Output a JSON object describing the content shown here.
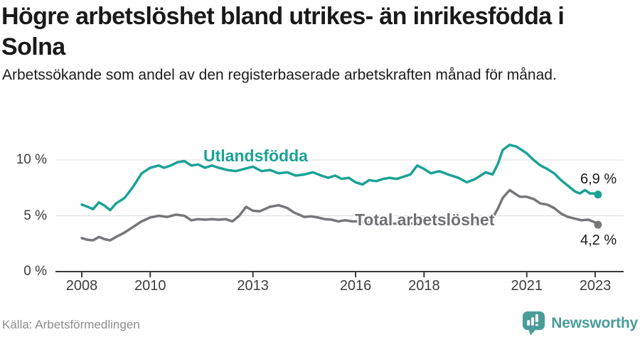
{
  "header": {
    "title": "Högre arbetslöshet bland utrikes- än inrikesfödda i Solna",
    "subtitle": "Arbetssökande som andel av den registerbaserade arbetskraften månad för månad."
  },
  "footer": {
    "source": "Källa: Arbetsförmedlingen",
    "brand_name": "Newsworthy",
    "brand_icon": "newsworthy-speech-bubble-bar-chart-icon",
    "brand_color": "#4a9c99"
  },
  "chart_data": {
    "type": "line",
    "title": "Högre arbetslöshet bland utrikes- än inrikesfödda i Solna",
    "subtitle": "Arbetssökande som andel av den registerbaserade arbetskraften månad för månad.",
    "xlabel": "",
    "ylabel": "",
    "grid": true,
    "legend_position": "inline-labels",
    "x_axis": {
      "unit": "year",
      "range": [
        2007.25,
        2023.85
      ],
      "ticks": [
        {
          "value": 2008,
          "label": "2008"
        },
        {
          "value": 2010,
          "label": "2010"
        },
        {
          "value": 2013,
          "label": "2013"
        },
        {
          "value": 2016,
          "label": "2016"
        },
        {
          "value": 2018,
          "label": "2018"
        },
        {
          "value": 2021,
          "label": "2021"
        },
        {
          "value": 2023,
          "label": "2023"
        }
      ]
    },
    "y_axis": {
      "unit": "percent",
      "range": [
        0,
        12
      ],
      "ticks": [
        {
          "value": 0,
          "label": "0 %"
        },
        {
          "value": 5,
          "label": "5 %"
        },
        {
          "value": 10,
          "label": "10 %"
        }
      ]
    },
    "colors": {
      "gridline": "#dcdcdc",
      "axis": "#3a3a3a"
    },
    "series": [
      {
        "name": "Utlandsfödda",
        "color": "#1aa296",
        "end_label": "6,9 %",
        "end_value": 6.9,
        "points": [
          [
            2008.0,
            6.0
          ],
          [
            2008.17,
            5.8
          ],
          [
            2008.33,
            5.6
          ],
          [
            2008.5,
            6.2
          ],
          [
            2008.67,
            5.9
          ],
          [
            2008.83,
            5.5
          ],
          [
            2009.0,
            6.1
          ],
          [
            2009.25,
            6.6
          ],
          [
            2009.5,
            7.6
          ],
          [
            2009.75,
            8.8
          ],
          [
            2010.0,
            9.3
          ],
          [
            2010.25,
            9.5
          ],
          [
            2010.4,
            9.3
          ],
          [
            2010.6,
            9.5
          ],
          [
            2010.8,
            9.8
          ],
          [
            2011.0,
            9.9
          ],
          [
            2011.2,
            9.5
          ],
          [
            2011.4,
            9.6
          ],
          [
            2011.6,
            9.3
          ],
          [
            2011.8,
            9.5
          ],
          [
            2012.0,
            9.3
          ],
          [
            2012.25,
            9.1
          ],
          [
            2012.5,
            9.0
          ],
          [
            2012.75,
            9.2
          ],
          [
            2013.0,
            9.4
          ],
          [
            2013.25,
            9.0
          ],
          [
            2013.5,
            9.1
          ],
          [
            2013.75,
            8.8
          ],
          [
            2014.0,
            8.9
          ],
          [
            2014.25,
            8.6
          ],
          [
            2014.5,
            8.7
          ],
          [
            2014.75,
            8.9
          ],
          [
            2015.0,
            8.6
          ],
          [
            2015.2,
            8.4
          ],
          [
            2015.4,
            8.6
          ],
          [
            2015.6,
            8.3
          ],
          [
            2015.8,
            8.4
          ],
          [
            2016.0,
            8.0
          ],
          [
            2016.2,
            7.8
          ],
          [
            2016.4,
            8.2
          ],
          [
            2016.6,
            8.1
          ],
          [
            2016.8,
            8.3
          ],
          [
            2017.0,
            8.4
          ],
          [
            2017.2,
            8.3
          ],
          [
            2017.4,
            8.5
          ],
          [
            2017.6,
            8.7
          ],
          [
            2017.8,
            9.5
          ],
          [
            2018.0,
            9.2
          ],
          [
            2018.2,
            8.8
          ],
          [
            2018.45,
            9.0
          ],
          [
            2018.7,
            8.7
          ],
          [
            2019.0,
            8.4
          ],
          [
            2019.25,
            8.0
          ],
          [
            2019.5,
            8.3
          ],
          [
            2019.8,
            8.9
          ],
          [
            2020.0,
            8.7
          ],
          [
            2020.15,
            9.6
          ],
          [
            2020.3,
            10.9
          ],
          [
            2020.5,
            11.35
          ],
          [
            2020.7,
            11.2
          ],
          [
            2020.85,
            10.9
          ],
          [
            2021.0,
            10.6
          ],
          [
            2021.2,
            10.0
          ],
          [
            2021.4,
            9.5
          ],
          [
            2021.6,
            9.2
          ],
          [
            2021.8,
            8.8
          ],
          [
            2022.0,
            8.2
          ],
          [
            2022.2,
            7.7
          ],
          [
            2022.4,
            7.2
          ],
          [
            2022.55,
            7.0
          ],
          [
            2022.7,
            7.3
          ],
          [
            2022.85,
            7.0
          ],
          [
            2023.0,
            7.0
          ],
          [
            2023.08,
            6.9
          ]
        ]
      },
      {
        "name": "Total arbetslöshet",
        "color": "#76767b",
        "label_color": "#6f6f76",
        "end_label": "4,2 %",
        "end_value": 4.2,
        "points": [
          [
            2008.0,
            3.0
          ],
          [
            2008.17,
            2.85
          ],
          [
            2008.33,
            2.8
          ],
          [
            2008.5,
            3.1
          ],
          [
            2008.67,
            2.9
          ],
          [
            2008.83,
            2.8
          ],
          [
            2009.0,
            3.1
          ],
          [
            2009.25,
            3.5
          ],
          [
            2009.5,
            4.0
          ],
          [
            2009.75,
            4.5
          ],
          [
            2010.0,
            4.85
          ],
          [
            2010.25,
            5.0
          ],
          [
            2010.5,
            4.9
          ],
          [
            2010.75,
            5.1
          ],
          [
            2011.0,
            5.0
          ],
          [
            2011.2,
            4.6
          ],
          [
            2011.4,
            4.7
          ],
          [
            2011.6,
            4.65
          ],
          [
            2011.8,
            4.7
          ],
          [
            2012.0,
            4.65
          ],
          [
            2012.2,
            4.7
          ],
          [
            2012.4,
            4.5
          ],
          [
            2012.6,
            5.0
          ],
          [
            2012.8,
            5.8
          ],
          [
            2013.0,
            5.45
          ],
          [
            2013.2,
            5.4
          ],
          [
            2013.5,
            5.8
          ],
          [
            2013.75,
            5.95
          ],
          [
            2014.0,
            5.7
          ],
          [
            2014.2,
            5.3
          ],
          [
            2014.5,
            4.9
          ],
          [
            2014.7,
            4.95
          ],
          [
            2014.9,
            4.85
          ],
          [
            2015.1,
            4.7
          ],
          [
            2015.3,
            4.65
          ],
          [
            2015.5,
            4.5
          ],
          [
            2015.7,
            4.6
          ],
          [
            2015.9,
            4.5
          ],
          [
            2016.0,
            4.5
          ],
          [
            2016.25,
            4.45
          ],
          [
            2016.5,
            4.4
          ],
          [
            2016.75,
            4.35
          ],
          [
            2017.0,
            4.3
          ],
          [
            2017.5,
            4.3
          ],
          [
            2018.0,
            4.35
          ],
          [
            2018.5,
            4.3
          ],
          [
            2019.0,
            4.3
          ],
          [
            2019.5,
            4.45
          ],
          [
            2019.75,
            4.6
          ],
          [
            2020.0,
            4.8
          ],
          [
            2020.15,
            5.6
          ],
          [
            2020.3,
            6.6
          ],
          [
            2020.5,
            7.3
          ],
          [
            2020.65,
            7.0
          ],
          [
            2020.8,
            6.7
          ],
          [
            2021.0,
            6.7
          ],
          [
            2021.2,
            6.5
          ],
          [
            2021.4,
            6.1
          ],
          [
            2021.6,
            6.0
          ],
          [
            2021.8,
            5.7
          ],
          [
            2022.0,
            5.2
          ],
          [
            2022.2,
            4.9
          ],
          [
            2022.4,
            4.75
          ],
          [
            2022.6,
            4.6
          ],
          [
            2022.8,
            4.65
          ],
          [
            2023.0,
            4.4
          ],
          [
            2023.08,
            4.2
          ]
        ]
      }
    ]
  }
}
